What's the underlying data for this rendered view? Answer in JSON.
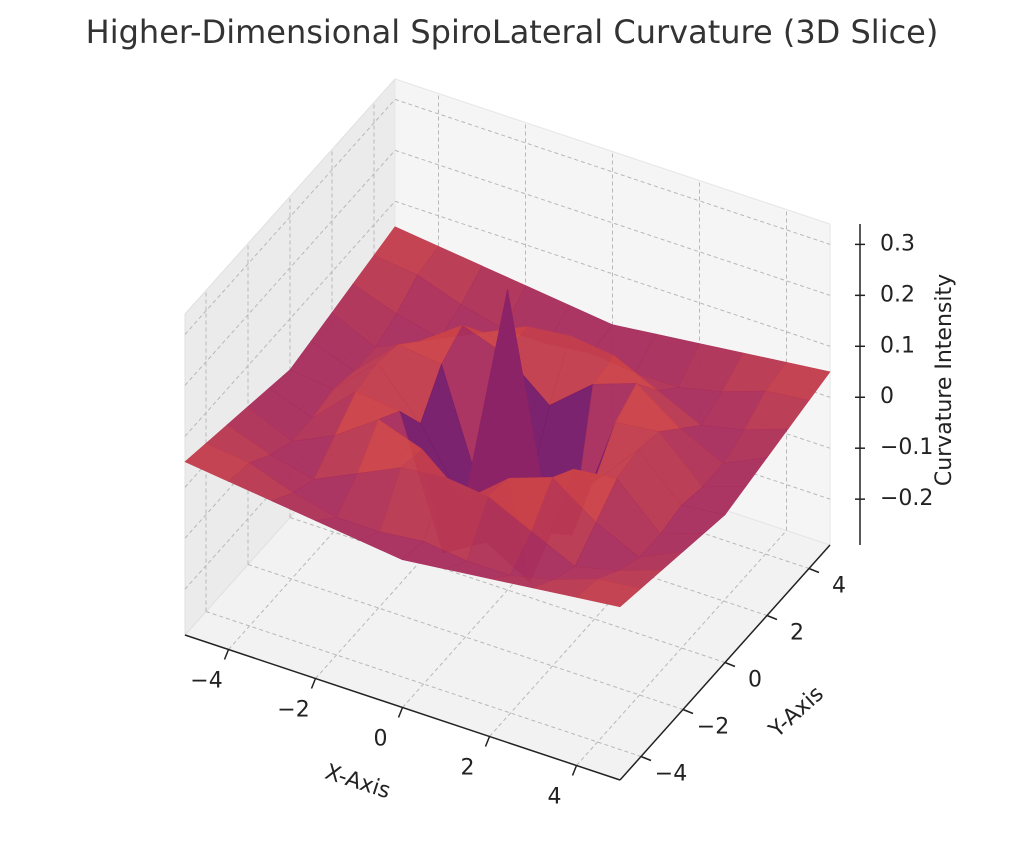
{
  "chart_data": {
    "type": "surface",
    "title": "Higher-Dimensional SpiroLateral Curvature (3D Slice)",
    "x_label": "X-Axis",
    "y_label": "Y-Axis",
    "z_label": "Curvature Intensity",
    "colormap": "inferno",
    "grid": true,
    "x": [
      -5,
      -4,
      -3,
      -2,
      -1,
      0,
      1,
      2,
      3,
      4,
      5
    ],
    "y": [
      -5,
      -4,
      -3,
      -2,
      -1,
      0,
      1,
      2,
      3,
      4,
      5
    ],
    "z": [
      [
        0.05,
        0.04,
        0.03,
        0.02,
        0.01,
        0.0,
        0.01,
        0.02,
        0.03,
        0.04,
        0.05
      ],
      [
        0.04,
        0.03,
        0.0,
        -0.02,
        -0.02,
        -0.01,
        -0.02,
        -0.02,
        0.0,
        0.03,
        0.04
      ],
      [
        0.03,
        0.0,
        -0.02,
        0.02,
        0.06,
        0.07,
        0.06,
        0.02,
        -0.02,
        0.0,
        0.03
      ],
      [
        0.02,
        -0.02,
        0.02,
        0.08,
        0.05,
        -0.02,
        0.05,
        0.08,
        0.02,
        -0.02,
        0.02
      ],
      [
        0.01,
        -0.02,
        0.06,
        0.05,
        -0.2,
        -0.15,
        -0.2,
        0.05,
        0.06,
        -0.02,
        0.01
      ],
      [
        0.0,
        -0.01,
        0.07,
        -0.02,
        -0.15,
        0.3,
        -0.15,
        -0.02,
        0.07,
        -0.01,
        0.0
      ],
      [
        0.01,
        -0.02,
        0.06,
        0.05,
        -0.2,
        -0.15,
        -0.2,
        0.05,
        0.06,
        -0.02,
        0.01
      ],
      [
        0.02,
        -0.02,
        0.02,
        0.08,
        0.05,
        -0.02,
        0.05,
        0.08,
        0.02,
        -0.02,
        0.02
      ],
      [
        0.03,
        0.0,
        -0.02,
        0.02,
        0.06,
        0.07,
        0.06,
        0.02,
        -0.02,
        0.0,
        0.03
      ],
      [
        0.04,
        0.03,
        0.0,
        -0.02,
        -0.02,
        -0.01,
        -0.02,
        -0.02,
        0.0,
        0.03,
        0.04
      ],
      [
        0.05,
        0.04,
        0.03,
        0.02,
        0.01,
        0.0,
        0.01,
        0.02,
        0.03,
        0.04,
        0.05
      ]
    ],
    "xlim": [
      -5,
      5
    ],
    "ylim": [
      -5,
      5
    ],
    "zlim": [
      -0.29,
      0.34
    ],
    "xticks": [
      {
        "value": -4,
        "label": "−4"
      },
      {
        "value": -2,
        "label": "−2"
      },
      0,
      2,
      4
    ],
    "yticks": [
      {
        "value": -4,
        "label": "−4"
      },
      {
        "value": -2,
        "label": "−2"
      },
      0,
      2,
      4
    ],
    "zticks": [
      {
        "value": -0.2,
        "label": "−0.2"
      },
      {
        "value": -0.1,
        "label": "−0.1"
      },
      0.0,
      0.1,
      0.2,
      0.3
    ]
  }
}
